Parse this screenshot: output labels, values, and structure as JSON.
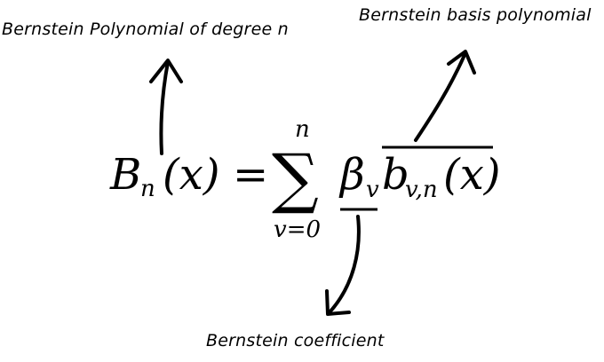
{
  "annotations": {
    "polynomial": "Bernstein Polynomial of degree n",
    "basis": "Bernstein basis polynomial",
    "coefficient": "Bernstein coefficient"
  },
  "equation": {
    "lhs_symbol": "B",
    "lhs_subscript": "n",
    "lhs_argument": "(x)",
    "equals": "=",
    "sum_symbol": "∑",
    "sum_upper": "n",
    "sum_lower": "v=0",
    "coef_symbol": "β",
    "coef_subscript": "v",
    "basis_symbol": "b",
    "basis_subscript": "v,n",
    "basis_argument": "(x)"
  }
}
